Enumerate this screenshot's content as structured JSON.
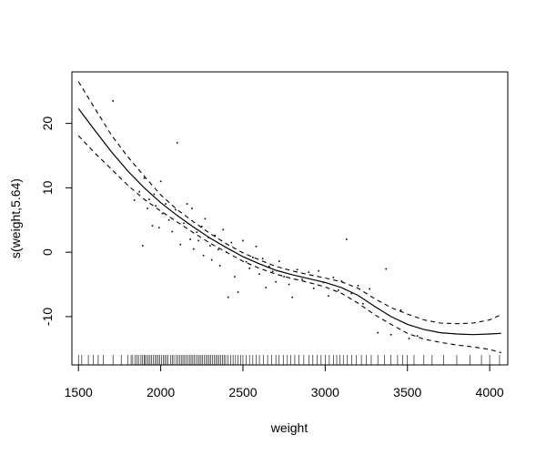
{
  "chart_data": {
    "type": "line",
    "title": "",
    "xlabel": "weight",
    "ylabel": "s(weight,5.64)",
    "xlim": [
      1460,
      4110
    ],
    "ylim": [
      -17.5,
      28
    ],
    "xticks": [
      1500,
      2000,
      2500,
      3000,
      3500,
      4000
    ],
    "yticks": [
      -10,
      0,
      10,
      20
    ],
    "grid": false,
    "series": [
      {
        "role": "fit",
        "style": "solid",
        "x": [
          1500,
          1600,
          1700,
          1800,
          1900,
          2000,
          2100,
          2200,
          2300,
          2400,
          2500,
          2600,
          2700,
          2800,
          2900,
          3000,
          3100,
          3200,
          3300,
          3400,
          3500,
          3600,
          3700,
          3800,
          3900,
          4000,
          4070
        ],
        "y": [
          22.3,
          18.9,
          15.6,
          12.6,
          10.0,
          7.7,
          5.7,
          3.9,
          2.2,
          0.7,
          -0.7,
          -1.8,
          -2.8,
          -3.5,
          -4.1,
          -4.7,
          -5.5,
          -6.7,
          -8.4,
          -10.0,
          -11.2,
          -12.0,
          -12.5,
          -12.7,
          -12.8,
          -12.7,
          -12.6
        ]
      },
      {
        "role": "upper-band",
        "style": "dashed",
        "x": [
          1500,
          1600,
          1700,
          1800,
          1900,
          2000,
          2100,
          2200,
          2300,
          2400,
          2500,
          2600,
          2700,
          2800,
          2900,
          3000,
          3100,
          3200,
          3300,
          3400,
          3500,
          3600,
          3700,
          3800,
          3900,
          4000,
          4070
        ],
        "y": [
          26.5,
          22.3,
          18.2,
          14.8,
          11.8,
          8.9,
          6.6,
          4.7,
          2.9,
          1.3,
          -0.1,
          -1.2,
          -2.2,
          -2.9,
          -3.5,
          -4.0,
          -4.6,
          -5.6,
          -7.2,
          -8.6,
          -9.6,
          -10.5,
          -11.0,
          -11.1,
          -11.0,
          -10.5,
          -9.7
        ]
      },
      {
        "role": "lower-band",
        "style": "dashed",
        "x": [
          1500,
          1600,
          1700,
          1800,
          1900,
          2000,
          2100,
          2200,
          2300,
          2400,
          2500,
          2600,
          2700,
          2800,
          2900,
          3000,
          3100,
          3200,
          3300,
          3400,
          3500,
          3600,
          3700,
          3800,
          3900,
          4000,
          4070
        ],
        "y": [
          18.1,
          15.4,
          12.9,
          10.4,
          8.2,
          6.4,
          4.7,
          3.0,
          1.4,
          0.0,
          -1.4,
          -2.5,
          -3.4,
          -4.1,
          -4.7,
          -5.4,
          -6.4,
          -7.9,
          -9.7,
          -11.2,
          -12.6,
          -13.5,
          -14.0,
          -14.4,
          -14.7,
          -15.1,
          -15.6
        ]
      }
    ],
    "points": {
      "x": [
        1710,
        1840,
        1870,
        1890,
        1900,
        1920,
        1930,
        1950,
        1960,
        1970,
        1990,
        2000,
        2010,
        2030,
        2050,
        2070,
        2090,
        2100,
        2120,
        2140,
        2160,
        2180,
        2190,
        2200,
        2220,
        2230,
        2250,
        2260,
        2270,
        2290,
        2300,
        2310,
        2330,
        2350,
        2360,
        2380,
        2400,
        2410,
        2430,
        2450,
        2470,
        2500,
        2520,
        2540,
        2560,
        2580,
        2600,
        2620,
        2640,
        2660,
        2680,
        2700,
        2720,
        2750,
        2780,
        2800,
        2830,
        2860,
        2900,
        2930,
        2960,
        2990,
        3020,
        3050,
        3080,
        3100,
        3130,
        3160,
        3200,
        3230,
        3270,
        3320,
        3370,
        3400,
        3460,
        3510,
        3560
      ],
      "y": [
        23.5,
        8.1,
        9.4,
        1.0,
        11.5,
        6.8,
        8.2,
        4.1,
        9.0,
        7.2,
        3.8,
        11.0,
        6.0,
        7.5,
        5.0,
        3.2,
        6.6,
        17.0,
        1.2,
        4.5,
        7.5,
        2.0,
        6.8,
        0.5,
        3.1,
        1.8,
        4.0,
        -0.5,
        5.2,
        2.3,
        1.0,
        -1.2,
        2.6,
        0.4,
        -2.1,
        3.5,
        0.0,
        -7.0,
        1.5,
        -3.8,
        -6.2,
        1.8,
        -1.5,
        -2.5,
        -0.8,
        0.9,
        -3.4,
        -1.0,
        -5.5,
        -2.2,
        -3.0,
        -4.6,
        -1.4,
        -3.8,
        -5.0,
        -7.0,
        -2.7,
        -4.2,
        -3.1,
        -5.6,
        -2.9,
        -4.7,
        -6.8,
        -3.9,
        -5.9,
        -4.5,
        2.0,
        -6.4,
        -5.2,
        -8.0,
        -5.7,
        -12.5,
        -2.6,
        -12.8,
        -9.0,
        -13.4,
        -13.0
      ]
    },
    "rug": [
      1500,
      1520,
      1560,
      1590,
      1620,
      1650,
      1710,
      1760,
      1800,
      1820,
      1830,
      1845,
      1855,
      1865,
      1880,
      1890,
      1900,
      1905,
      1915,
      1925,
      1935,
      1945,
      1955,
      1965,
      1975,
      1985,
      1995,
      2005,
      2015,
      2025,
      2035,
      2045,
      2060,
      2070,
      2080,
      2095,
      2105,
      2115,
      2125,
      2135,
      2145,
      2155,
      2165,
      2175,
      2185,
      2195,
      2205,
      2215,
      2225,
      2235,
      2245,
      2255,
      2265,
      2275,
      2285,
      2295,
      2305,
      2315,
      2325,
      2335,
      2345,
      2355,
      2365,
      2375,
      2385,
      2395,
      2410,
      2425,
      2440,
      2455,
      2470,
      2485,
      2500,
      2520,
      2540,
      2560,
      2580,
      2600,
      2625,
      2650,
      2675,
      2700,
      2720,
      2745,
      2770,
      2790,
      2815,
      2840,
      2870,
      2900,
      2925,
      2950,
      2975,
      3000,
      3025,
      3050,
      3070,
      3090,
      3110,
      3135,
      3160,
      3190,
      3220,
      3250,
      3280,
      3320,
      3360,
      3400,
      3440,
      3470,
      3500,
      3540,
      3600,
      3650,
      3720,
      3800,
      3880,
      3950,
      4000,
      4060
    ]
  }
}
